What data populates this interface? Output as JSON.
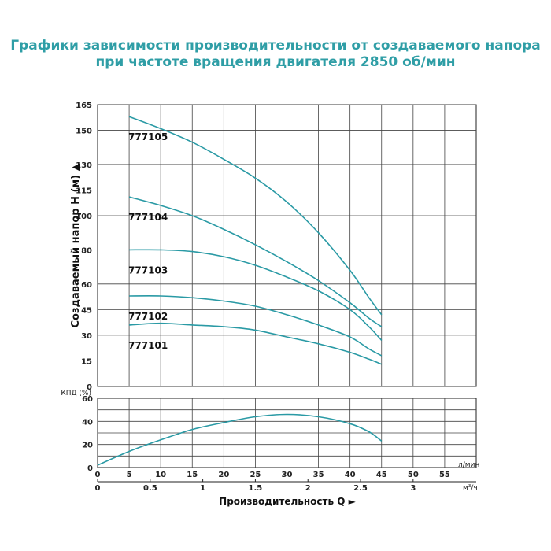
{
  "title": {
    "line1": "Графики зависимости производительности от создаваемого напора",
    "line2": "при частоте вращения двигателя 2850 об/мин"
  },
  "colors": {
    "title": "#2f9ea6",
    "curve": "#2a9aa5",
    "grid": "#444444"
  },
  "chart_data": [
    {
      "type": "line",
      "ylabel": "Создаваемый напор H (м) ▲",
      "ylim": [
        0,
        165
      ],
      "yticks": [
        "0",
        "15",
        "30",
        "45",
        "60",
        "80",
        "100",
        "115",
        "130",
        "150",
        "165"
      ],
      "ytick_values": [
        0,
        15,
        30,
        45,
        60,
        80,
        100,
        115,
        130,
        150,
        165
      ],
      "xlim": [
        0,
        60
      ],
      "xunit_lpm": "л/мин",
      "grid": true,
      "series": [
        {
          "name": "777105",
          "x": [
            5,
            10,
            15,
            20,
            25,
            30,
            35,
            40,
            43,
            45
          ],
          "y": [
            158,
            151,
            143,
            133,
            122,
            108,
            90,
            68,
            52,
            42
          ]
        },
        {
          "name": "777104",
          "x": [
            5,
            10,
            15,
            20,
            25,
            30,
            35,
            40,
            43,
            45
          ],
          "y": [
            111,
            106,
            100,
            92,
            83,
            73,
            62,
            49,
            40,
            35
          ]
        },
        {
          "name": "777103",
          "x": [
            5,
            10,
            15,
            20,
            25,
            30,
            35,
            40,
            43,
            45
          ],
          "y": [
            80,
            80,
            79,
            76,
            71,
            64,
            56,
            45,
            35,
            27
          ]
        },
        {
          "name": "777102",
          "x": [
            5,
            10,
            15,
            20,
            25,
            30,
            35,
            40,
            43,
            45
          ],
          "y": [
            53,
            53,
            52,
            50,
            47,
            42,
            36,
            29,
            22,
            18
          ]
        },
        {
          "name": "777101",
          "x": [
            5,
            10,
            15,
            20,
            25,
            30,
            35,
            40,
            43,
            45
          ],
          "y": [
            36,
            37,
            36,
            35,
            33,
            29,
            25,
            20,
            16,
            13
          ]
        }
      ]
    },
    {
      "type": "line",
      "ylabel": "КПД (%)",
      "ylim": [
        0,
        60
      ],
      "yticks": [
        "0",
        "20",
        "40",
        "60"
      ],
      "ytick_values": [
        0,
        20,
        40,
        60
      ],
      "xlim": [
        0,
        60
      ],
      "grid": true,
      "series": [
        {
          "x": [
            0,
            5,
            10,
            15,
            20,
            25,
            30,
            35,
            40,
            43,
            45
          ],
          "y": [
            2,
            14,
            24,
            33,
            39,
            44,
            46,
            44,
            38,
            31,
            23
          ]
        }
      ]
    }
  ],
  "x_axis": {
    "lpm_ticks": [
      "0",
      "5",
      "10",
      "15",
      "20",
      "25",
      "30",
      "35",
      "40",
      "45",
      "50",
      "55"
    ],
    "lpm_values": [
      0,
      5,
      10,
      15,
      20,
      25,
      30,
      35,
      40,
      45,
      50,
      55
    ],
    "lpm_unit": "л/мин",
    "m3h_ticks": [
      "0",
      "0.5",
      "1",
      "1.5",
      "2",
      "2.5",
      "3"
    ],
    "m3h_values": [
      0,
      0.5,
      1,
      1.5,
      2,
      2.5,
      3
    ],
    "m3h_unit": "м³/ч",
    "label": "Производительность Q ►"
  }
}
